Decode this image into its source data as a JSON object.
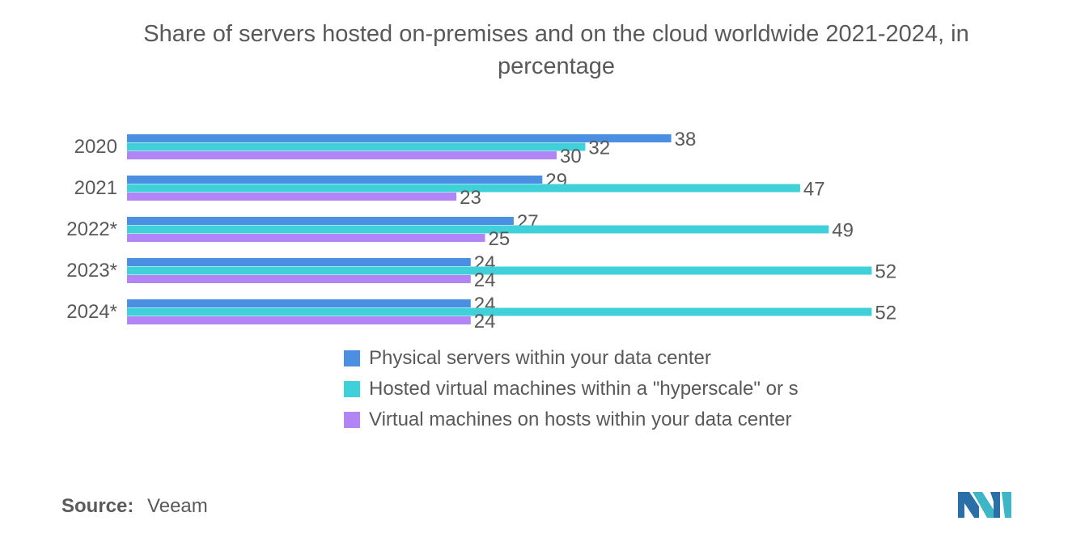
{
  "title": "Share of servers hosted on-premises and on the cloud worldwide 2021-2024, in percentage",
  "source": {
    "label": "Source:",
    "value": "Veeam"
  },
  "colors": {
    "series": [
      "#4a8fe2",
      "#3fd0d9",
      "#b185f5"
    ],
    "text": "#595959"
  },
  "legend": [
    {
      "label": "Physical servers within your data center",
      "color": "#4a8fe2"
    },
    {
      "label": "Hosted virtual machines within a \"hyperscale\" or s",
      "color": "#3fd0d9"
    },
    {
      "label": "Virtual machines on hosts within your data center",
      "color": "#b185f5"
    }
  ],
  "chart_data": {
    "type": "bar",
    "orientation": "horizontal",
    "title": "Share of servers hosted on-premises and on the cloud worldwide 2021-2024, in percentage",
    "categories": [
      "2020",
      "2021",
      "2022*",
      "2023*",
      "2024*"
    ],
    "series": [
      {
        "name": "Physical servers within your data center",
        "values": [
          38,
          29,
          27,
          24,
          24
        ]
      },
      {
        "name": "Hosted virtual machines within a \"hyperscale\" or s",
        "values": [
          32,
          47,
          49,
          52,
          52
        ]
      },
      {
        "name": "Virtual machines on hosts within your data center",
        "values": [
          30,
          23,
          25,
          24,
          24
        ]
      }
    ],
    "xlim": [
      0,
      52
    ],
    "grid": false,
    "legend_position": "bottom"
  },
  "logo_name": "mordor-logo"
}
